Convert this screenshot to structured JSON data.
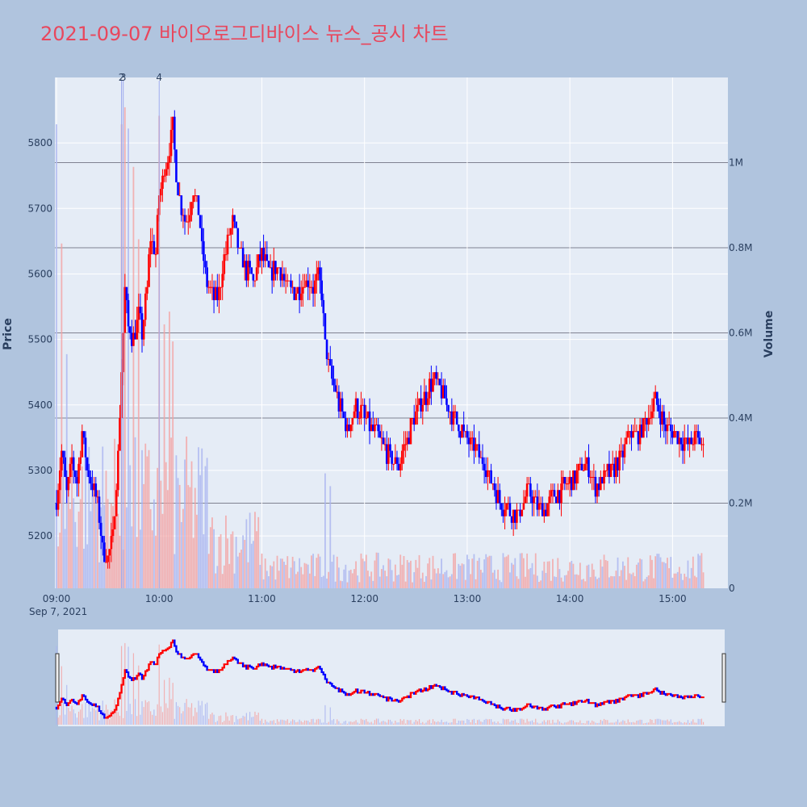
{
  "title": "2021-09-07 바이오로그디바이스 뉴스_공시 차트",
  "colors": {
    "background": "#b0c4de",
    "plot_bg": "#e5ecf6",
    "title": "#e8475d",
    "up": "#ff0000",
    "down": "#0000ff",
    "up_volume": "#f4a3a3",
    "down_volume": "#a9b4f0",
    "grid": "#ffffff",
    "volume_grid": "#555566"
  },
  "axes": {
    "y_label": "Price",
    "y2_label": "Volume",
    "x_date_label": "Sep 7, 2021",
    "x_tick_labels": [
      "09:00",
      "10:00",
      "11:00",
      "12:00",
      "13:00",
      "14:00",
      "15:00"
    ],
    "y_tick_labels": [
      "5200",
      "5300",
      "5400",
      "5500",
      "5600",
      "5700",
      "5800"
    ],
    "y2_tick_labels": [
      "0",
      "0.2M",
      "0.4M",
      "0.6M",
      "0.8M",
      "1M"
    ]
  },
  "chart_data": {
    "type": "candlestick",
    "x_range": [
      "09:00",
      "15:30"
    ],
    "y_range": [
      5120,
      5900
    ],
    "y2_range": [
      0,
      1200000
    ],
    "price_path": [
      [
        "09:00",
        5250
      ],
      [
        "09:03",
        5330
      ],
      [
        "09:06",
        5260
      ],
      [
        "09:09",
        5320
      ],
      [
        "09:12",
        5280
      ],
      [
        "09:15",
        5360
      ],
      [
        "09:18",
        5300
      ],
      [
        "09:21",
        5280
      ],
      [
        "09:24",
        5250
      ],
      [
        "09:27",
        5180
      ],
      [
        "09:30",
        5170
      ],
      [
        "09:33",
        5200
      ],
      [
        "09:36",
        5320
      ],
      [
        "09:38",
        5450
      ],
      [
        "09:40",
        5580
      ],
      [
        "09:42",
        5520
      ],
      [
        "09:45",
        5500
      ],
      [
        "09:48",
        5540
      ],
      [
        "09:50",
        5510
      ],
      [
        "09:53",
        5580
      ],
      [
        "09:55",
        5660
      ],
      [
        "09:58",
        5630
      ],
      [
        "10:00",
        5720
      ],
      [
        "10:03",
        5760
      ],
      [
        "10:06",
        5790
      ],
      [
        "10:08",
        5830
      ],
      [
        "10:10",
        5750
      ],
      [
        "10:13",
        5700
      ],
      [
        "10:16",
        5680
      ],
      [
        "10:20",
        5730
      ],
      [
        "10:23",
        5700
      ],
      [
        "10:25",
        5640
      ],
      [
        "10:28",
        5580
      ],
      [
        "10:31",
        5570
      ],
      [
        "10:34",
        5560
      ],
      [
        "10:37",
        5610
      ],
      [
        "10:40",
        5650
      ],
      [
        "10:43",
        5680
      ],
      [
        "10:46",
        5640
      ],
      [
        "10:50",
        5610
      ],
      [
        "10:55",
        5590
      ],
      [
        "11:00",
        5630
      ],
      [
        "11:05",
        5600
      ],
      [
        "11:10",
        5610
      ],
      [
        "11:15",
        5580
      ],
      [
        "11:20",
        5570
      ],
      [
        "11:25",
        5590
      ],
      [
        "11:30",
        5580
      ],
      [
        "11:33",
        5600
      ],
      [
        "11:35",
        5570
      ],
      [
        "11:37",
        5490
      ],
      [
        "11:40",
        5450
      ],
      [
        "11:45",
        5400
      ],
      [
        "11:50",
        5360
      ],
      [
        "11:55",
        5400
      ],
      [
        "12:00",
        5380
      ],
      [
        "12:05",
        5360
      ],
      [
        "12:10",
        5340
      ],
      [
        "12:15",
        5320
      ],
      [
        "12:20",
        5310
      ],
      [
        "12:25",
        5350
      ],
      [
        "12:30",
        5390
      ],
      [
        "12:35",
        5410
      ],
      [
        "12:40",
        5440
      ],
      [
        "12:45",
        5420
      ],
      [
        "12:50",
        5390
      ],
      [
        "12:55",
        5370
      ],
      [
        "13:00",
        5350
      ],
      [
        "13:05",
        5330
      ],
      [
        "13:10",
        5310
      ],
      [
        "13:15",
        5280
      ],
      [
        "13:20",
        5250
      ],
      [
        "13:25",
        5240
      ],
      [
        "13:30",
        5230
      ],
      [
        "13:35",
        5270
      ],
      [
        "13:40",
        5250
      ],
      [
        "13:45",
        5240
      ],
      [
        "13:50",
        5260
      ],
      [
        "13:55",
        5270
      ],
      [
        "14:00",
        5280
      ],
      [
        "14:05",
        5300
      ],
      [
        "14:10",
        5310
      ],
      [
        "14:15",
        5270
      ],
      [
        "14:20",
        5290
      ],
      [
        "14:25",
        5300
      ],
      [
        "14:30",
        5320
      ],
      [
        "14:35",
        5360
      ],
      [
        "14:40",
        5350
      ],
      [
        "14:45",
        5380
      ],
      [
        "14:50",
        5410
      ],
      [
        "14:55",
        5370
      ],
      [
        "15:00",
        5360
      ],
      [
        "15:05",
        5350
      ],
      [
        "15:10",
        5340
      ],
      [
        "15:15",
        5350
      ],
      [
        "15:18",
        5330
      ]
    ],
    "volume_spikes": [
      [
        "09:00",
        1090000
      ],
      [
        "09:03",
        810000
      ],
      [
        "09:06",
        550000
      ],
      [
        "09:38",
        1090000
      ],
      [
        "09:40",
        1130000
      ],
      [
        "09:42",
        1080000
      ],
      [
        "09:45",
        990000
      ],
      [
        "09:48",
        820000
      ],
      [
        "10:00",
        1110000
      ],
      [
        "10:03",
        620000
      ],
      [
        "10:06",
        650000
      ],
      [
        "10:08",
        580000
      ],
      [
        "11:37",
        270000
      ],
      [
        "11:40",
        240000
      ]
    ],
    "news_markers": [
      {
        "label": "2",
        "time": "09:38"
      },
      {
        "label": "3",
        "time": "09:39"
      },
      {
        "label": "4",
        "time": "10:00"
      }
    ]
  }
}
